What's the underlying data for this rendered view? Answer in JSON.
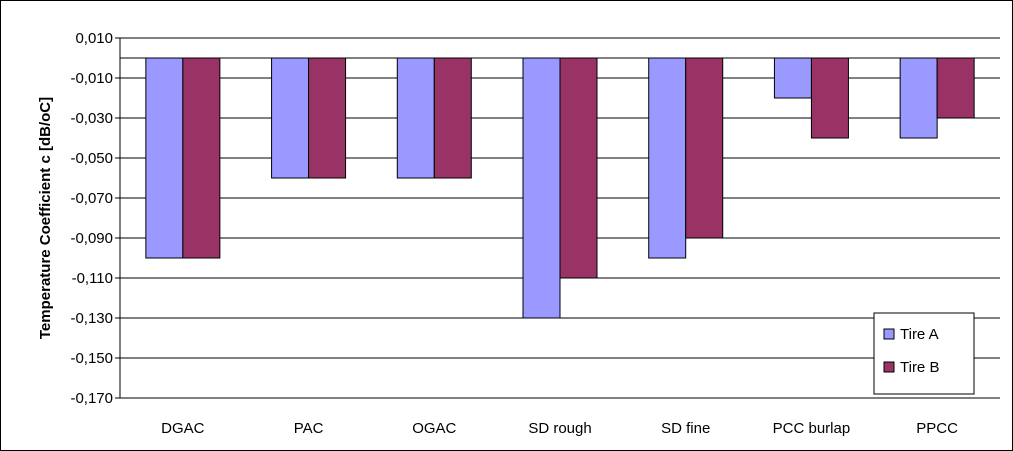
{
  "chart_data": {
    "type": "bar",
    "categories": [
      "DGAC",
      "PAC",
      "OGAC",
      "SD rough",
      "SD fine",
      "PCC burlap",
      "PPCC"
    ],
    "series": [
      {
        "name": "Tire A",
        "values": [
          -0.1,
          -0.06,
          -0.06,
          -0.13,
          -0.1,
          -0.02,
          -0.04
        ],
        "color": "#9999ff"
      },
      {
        "name": "Tire B",
        "values": [
          -0.1,
          -0.06,
          -0.06,
          -0.11,
          -0.09,
          -0.04,
          -0.03
        ],
        "color": "#993366"
      }
    ],
    "ylabel": "Temperature Coefficient  c  [dB/oC]",
    "ylim": [
      -0.17,
      0.01
    ],
    "yticks": [
      "0,010",
      "-0,010",
      "-0,030",
      "-0,050",
      "-0,070",
      "-0,090",
      "-0,110",
      "-0,130",
      "-0,150",
      "-0,170"
    ],
    "ytick_step": 0.02,
    "grid": true,
    "legend_position": "bottom-right"
  }
}
